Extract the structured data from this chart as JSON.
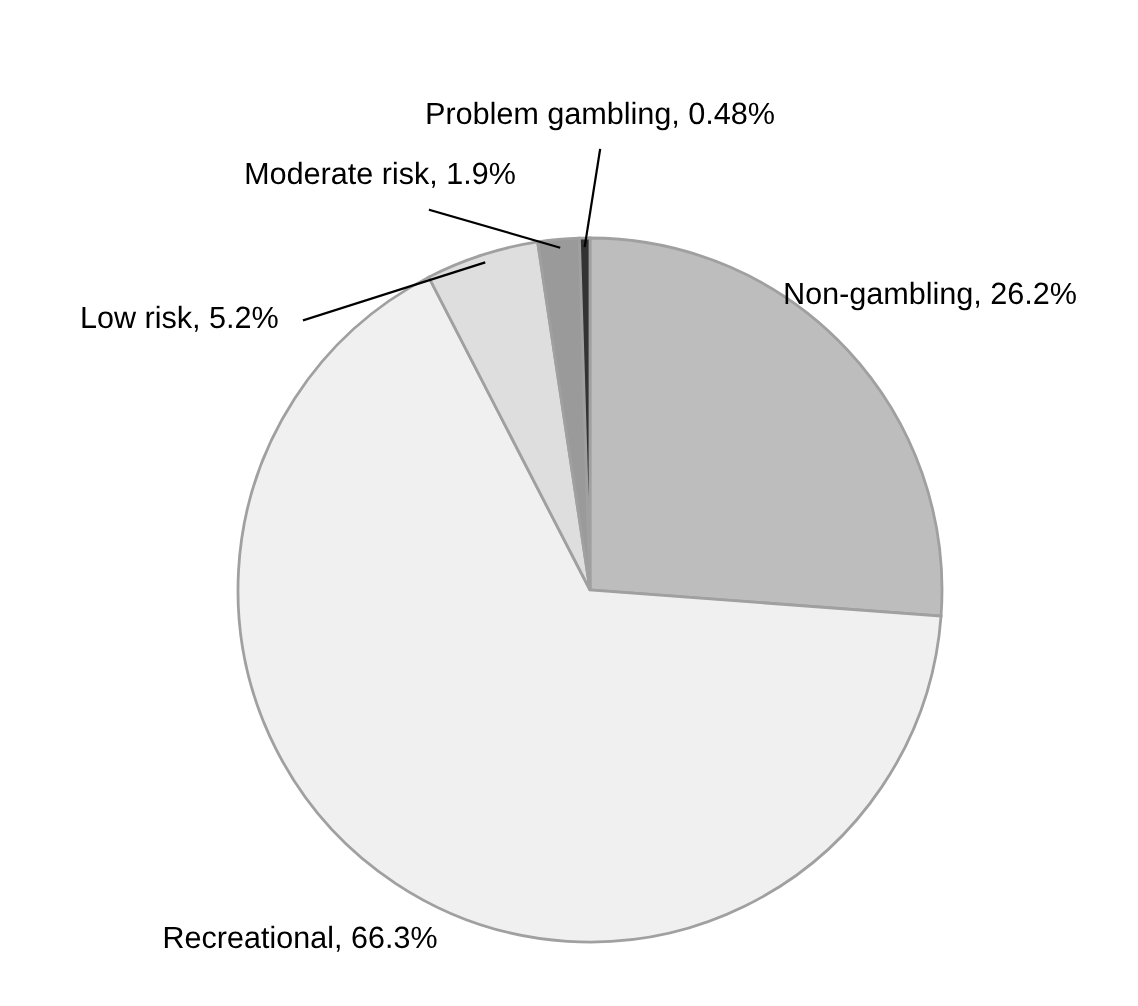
{
  "chart_data": {
    "type": "pie",
    "categories": [
      "Non-gambling",
      "Recreational",
      "Low risk",
      "Moderate risk",
      "Problem gambling"
    ],
    "values": [
      26.2,
      66.3,
      5.2,
      1.9,
      0.48
    ],
    "value_labels": [
      "26.2%",
      "66.3%",
      "5.2%",
      "1.9%",
      "0.48%"
    ],
    "colors": [
      "#bdbdbd",
      "#f0f0f0",
      "#dedede",
      "#9a9a9a",
      "#333333"
    ],
    "legend": false
  }
}
